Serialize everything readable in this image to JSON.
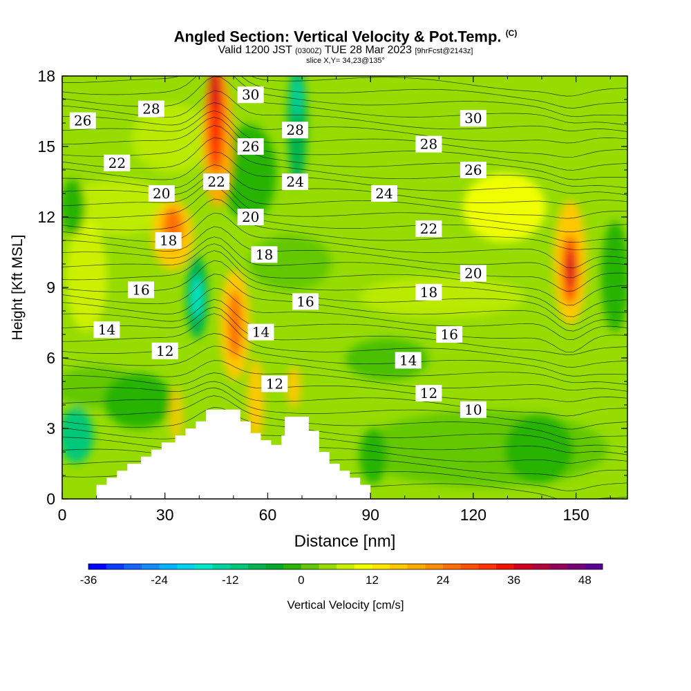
{
  "title": {
    "main": "Angled Section: Vertical Velocity & Pot.Temp.",
    "copyright": "(C)",
    "valid_prefix": "Valid 1200 JST",
    "zulu": "(0300Z)",
    "valid_suffix": "TUE 28 Mar 2023",
    "forecast": "[9hrFcst@2143z]",
    "slice": "slice X,Y= 34,23@135°"
  },
  "chart_data": {
    "type": "heatmap",
    "xlabel": "Distance [nm]",
    "ylabel": "Height [Kft MSL]",
    "xlim": [
      0,
      165
    ],
    "ylim": [
      0,
      18
    ],
    "x_ticks": [
      0,
      30,
      60,
      90,
      120,
      150
    ],
    "y_ticks": [
      0,
      3,
      6,
      9,
      12,
      15,
      18
    ],
    "colorbar": {
      "label": "Vertical Velocity [cm/s]",
      "ticks": [
        -36,
        -24,
        -12,
        0,
        12,
        24,
        36,
        48
      ],
      "levels": [
        -36,
        -33,
        -30,
        -27,
        -24,
        -21,
        -18,
        -15,
        -12,
        -9,
        -6,
        -3,
        0,
        3,
        6,
        9,
        12,
        15,
        18,
        21,
        24,
        27,
        30,
        33,
        36,
        39,
        42,
        45,
        48,
        51
      ],
      "colors": [
        "#0000ff",
        "#0a3cff",
        "#1464ff",
        "#148cff",
        "#00b4ff",
        "#00d2f0",
        "#00e6c8",
        "#00d2a0",
        "#00c878",
        "#00b450",
        "#00aa28",
        "#28b400",
        "#64c800",
        "#96dc00",
        "#c8f000",
        "#f0ff00",
        "#ffe600",
        "#ffc800",
        "#ffaa00",
        "#ff8c00",
        "#ff6e00",
        "#ff5000",
        "#ff3200",
        "#f01400",
        "#d2001e",
        "#b4003c",
        "#96005a",
        "#780078",
        "#5a0096"
      ]
    },
    "contour_labels": [
      {
        "value": "26",
        "x": 6,
        "y": 16.1
      },
      {
        "value": "28",
        "x": 26,
        "y": 16.6
      },
      {
        "value": "30",
        "x": 55,
        "y": 17.2
      },
      {
        "value": "28",
        "x": 68,
        "y": 15.7
      },
      {
        "value": "26",
        "x": 55,
        "y": 15.0
      },
      {
        "value": "22",
        "x": 16,
        "y": 14.3
      },
      {
        "value": "20",
        "x": 29,
        "y": 13.0
      },
      {
        "value": "22",
        "x": 45,
        "y": 13.5
      },
      {
        "value": "24",
        "x": 68,
        "y": 13.5
      },
      {
        "value": "18",
        "x": 31,
        "y": 11.0
      },
      {
        "value": "20",
        "x": 55,
        "y": 12.0
      },
      {
        "value": "18",
        "x": 59,
        "y": 10.4
      },
      {
        "value": "16",
        "x": 23,
        "y": 8.9
      },
      {
        "value": "16",
        "x": 71,
        "y": 8.4
      },
      {
        "value": "14",
        "x": 13,
        "y": 7.2
      },
      {
        "value": "12",
        "x": 30,
        "y": 6.3
      },
      {
        "value": "14",
        "x": 58,
        "y": 7.1
      },
      {
        "value": "12",
        "x": 62,
        "y": 4.9
      },
      {
        "value": "30",
        "x": 120,
        "y": 16.2
      },
      {
        "value": "28",
        "x": 107,
        "y": 15.1
      },
      {
        "value": "26",
        "x": 120,
        "y": 14.0
      },
      {
        "value": "24",
        "x": 94,
        "y": 13.0
      },
      {
        "value": "22",
        "x": 107,
        "y": 11.5
      },
      {
        "value": "20",
        "x": 120,
        "y": 9.6
      },
      {
        "value": "18",
        "x": 107,
        "y": 8.8
      },
      {
        "value": "16",
        "x": 113,
        "y": 7.0
      },
      {
        "value": "14",
        "x": 101,
        "y": 5.9
      },
      {
        "value": "12",
        "x": 107,
        "y": 4.5
      },
      {
        "value": "10",
        "x": 120,
        "y": 3.8
      }
    ],
    "terrain": [
      [
        0,
        0
      ],
      [
        10,
        0
      ],
      [
        10,
        0.6
      ],
      [
        13,
        0.6
      ],
      [
        13,
        0.9
      ],
      [
        16,
        0.9
      ],
      [
        16,
        1.2
      ],
      [
        19,
        1.2
      ],
      [
        19,
        1.5
      ],
      [
        23,
        1.5
      ],
      [
        23,
        1.8
      ],
      [
        26,
        1.8
      ],
      [
        26,
        2.1
      ],
      [
        29,
        2.1
      ],
      [
        29,
        2.4
      ],
      [
        33,
        2.4
      ],
      [
        33,
        2.7
      ],
      [
        36,
        2.7
      ],
      [
        36,
        3.0
      ],
      [
        39,
        3.0
      ],
      [
        39,
        3.3
      ],
      [
        42,
        3.3
      ],
      [
        42,
        3.8
      ],
      [
        52,
        3.8
      ],
      [
        52,
        3.3
      ],
      [
        55,
        3.3
      ],
      [
        55,
        2.8
      ],
      [
        58,
        2.8
      ],
      [
        58,
        2.5
      ],
      [
        61,
        2.5
      ],
      [
        61,
        2.3
      ],
      [
        64,
        2.3
      ],
      [
        64,
        2.7
      ],
      [
        65,
        2.7
      ],
      [
        65,
        3.5
      ],
      [
        72,
        3.5
      ],
      [
        72,
        2.9
      ],
      [
        75,
        2.9
      ],
      [
        75,
        2.0
      ],
      [
        78,
        2.0
      ],
      [
        78,
        1.5
      ],
      [
        81,
        1.5
      ],
      [
        81,
        1.2
      ],
      [
        84,
        1.2
      ],
      [
        84,
        0.9
      ],
      [
        87,
        0.9
      ],
      [
        87,
        0.6
      ],
      [
        90,
        0.6
      ],
      [
        90,
        0
      ],
      [
        0,
        0
      ]
    ]
  }
}
